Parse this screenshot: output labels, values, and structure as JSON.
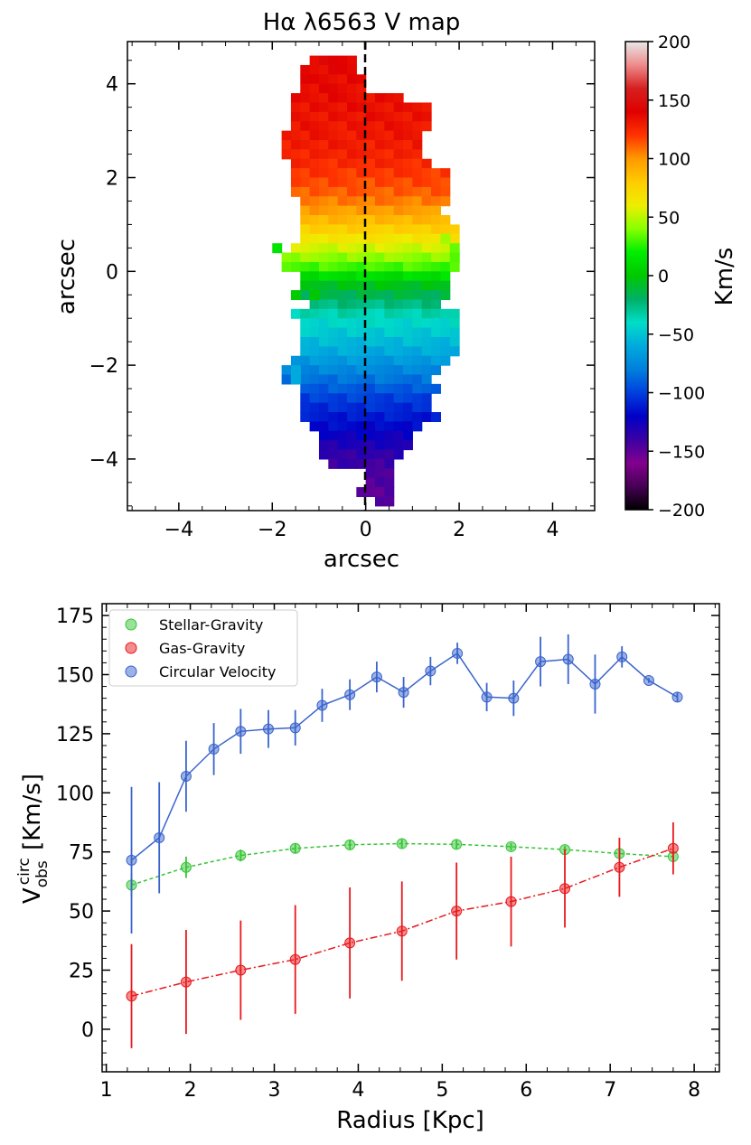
{
  "chart_data": [
    {
      "type": "heatmap",
      "title": "Hα λ6563 V map",
      "xlabel": "arcsec",
      "ylabel": "arcsec",
      "xlim": [
        -5.1,
        4.9
      ],
      "ylim": [
        -5.1,
        4.9
      ],
      "xticks": [
        "−4",
        "−2",
        "0",
        "2",
        "4"
      ],
      "yticks": [
        "−4",
        "−2",
        "0",
        "2",
        "4"
      ],
      "pixel_size_arcsec": 0.2,
      "colormap": "nipy_spectral",
      "colorbar": {
        "label": "Km/s",
        "range": [
          -200,
          200
        ],
        "ticks": [
          "200",
          "150",
          "100",
          "50",
          "0",
          "−50",
          "−100",
          "−150",
          "−200"
        ]
      },
      "center_line_x": 0,
      "rows": [
        {
          "y": 4.5,
          "x_from": -1.1,
          "x_to": -0.4,
          "v_top": 140,
          "v_bottom": 140
        },
        {
          "y": 4.3,
          "x_from": -1.3,
          "x_to": -0.4,
          "v_top": 138,
          "v_bottom": 138
        },
        {
          "y": 4.1,
          "x_from": -1.3,
          "x_to": -0.2,
          "v_top": 137,
          "v_bottom": 137
        },
        {
          "y": 3.9,
          "x_from": -1.3,
          "x_to": -0.2,
          "v_top": 136,
          "v_bottom": 136
        },
        {
          "y": 3.7,
          "x_from": -1.5,
          "x_to": 0.6,
          "v_top": 135,
          "v_bottom": 135
        },
        {
          "y": 3.5,
          "x_from": -1.5,
          "x_to": 1.2,
          "v_top": 134,
          "v_bottom": 134
        },
        {
          "y": 3.3,
          "x_from": -1.5,
          "x_to": 1.2,
          "v_top": 133,
          "v_bottom": 133
        },
        {
          "y": 3.1,
          "x_from": -1.5,
          "x_to": 1.2,
          "v_top": 132,
          "v_bottom": 132
        },
        {
          "y": 2.9,
          "x_from": -1.7,
          "x_to": 1.2,
          "v_top": 131,
          "v_bottom": 131
        },
        {
          "y": 2.7,
          "x_from": -1.7,
          "x_to": 1.2,
          "v_top": 129,
          "v_bottom": 129
        },
        {
          "y": 2.5,
          "x_from": -1.7,
          "x_to": 1.2,
          "v_top": 127,
          "v_bottom": 127
        },
        {
          "y": 2.3,
          "x_from": -1.5,
          "x_to": 1.4,
          "v_top": 124,
          "v_bottom": 124
        },
        {
          "y": 2.1,
          "x_from": -1.5,
          "x_to": 1.6,
          "v_top": 120,
          "v_bottom": 120
        },
        {
          "y": 1.9,
          "x_from": -1.5,
          "x_to": 1.6,
          "v_top": 116,
          "v_bottom": 116
        },
        {
          "y": 1.7,
          "x_from": -1.5,
          "x_to": 1.6,
          "v_top": 112,
          "v_bottom": 112
        },
        {
          "y": 1.5,
          "x_from": -1.3,
          "x_to": 1.6,
          "v_top": 106,
          "v_bottom": 106
        },
        {
          "y": 1.3,
          "x_from": -1.3,
          "x_to": 1.4,
          "v_top": 98,
          "v_bottom": 98
        },
        {
          "y": 1.1,
          "x_from": -1.3,
          "x_to": 1.6,
          "v_top": 88,
          "v_bottom": 88
        },
        {
          "y": 0.9,
          "x_from": -1.3,
          "x_to": 1.8,
          "v_top": 78,
          "v_bottom": 78
        },
        {
          "y": 0.7,
          "x_from": -1.3,
          "x_to": 1.8,
          "v_top": 66,
          "v_bottom": 66
        },
        {
          "y": 0.5,
          "x_from": -1.5,
          "x_to": 1.6,
          "v_top": 54,
          "v_bottom": 54
        },
        {
          "y": 0.3,
          "x_from": -1.7,
          "x_to": 1.8,
          "v_top": 42,
          "v_bottom": 42
        },
        {
          "y": 0.1,
          "x_from": -1.7,
          "x_to": 1.8,
          "v_top": 30,
          "v_bottom": 30
        },
        {
          "y": -0.1,
          "x_from": -1.3,
          "x_to": 1.6,
          "v_top": 12,
          "v_bottom": 12
        },
        {
          "y": -0.3,
          "x_from": -1.3,
          "x_to": 1.6,
          "v_top": -5,
          "v_bottom": -5
        },
        {
          "y": -0.5,
          "x_from": -1.3,
          "x_to": 1.6,
          "v_top": -15,
          "v_bottom": -15
        },
        {
          "y": -0.7,
          "x_from": -1.1,
          "x_to": 1.4,
          "v_top": -25,
          "v_bottom": -25
        },
        {
          "y": -0.9,
          "x_from": -1.5,
          "x_to": 1.8,
          "v_top": -35,
          "v_bottom": -35
        },
        {
          "y": -1.1,
          "x_from": -1.3,
          "x_to": 1.8,
          "v_top": -42,
          "v_bottom": -42
        },
        {
          "y": -1.3,
          "x_from": -1.3,
          "x_to": 1.8,
          "v_top": -48,
          "v_bottom": -48
        },
        {
          "y": -1.5,
          "x_from": -1.3,
          "x_to": 1.8,
          "v_top": -54,
          "v_bottom": -54
        },
        {
          "y": -1.7,
          "x_from": -1.3,
          "x_to": 1.8,
          "v_top": -60,
          "v_bottom": -60
        },
        {
          "y": -1.9,
          "x_from": -1.5,
          "x_to": 1.6,
          "v_top": -68,
          "v_bottom": -68
        },
        {
          "y": -2.1,
          "x_from": -1.7,
          "x_to": 1.6,
          "v_top": -76,
          "v_bottom": -76
        },
        {
          "y": -2.3,
          "x_from": -1.7,
          "x_to": 1.4,
          "v_top": -84,
          "v_bottom": -84
        },
        {
          "y": -2.5,
          "x_from": -1.3,
          "x_to": 1.4,
          "v_top": -92,
          "v_bottom": -92
        },
        {
          "y": -2.7,
          "x_from": -1.3,
          "x_to": 1.2,
          "v_top": -100,
          "v_bottom": -100
        },
        {
          "y": -2.9,
          "x_from": -1.3,
          "x_to": 1.2,
          "v_top": -106,
          "v_bottom": -106
        },
        {
          "y": -3.1,
          "x_from": -1.3,
          "x_to": 1.4,
          "v_top": -112,
          "v_bottom": -112
        },
        {
          "y": -3.3,
          "x_from": -1.1,
          "x_to": 1.2,
          "v_top": -118,
          "v_bottom": -118
        },
        {
          "y": -3.5,
          "x_from": -0.9,
          "x_to": 1.0,
          "v_top": -124,
          "v_bottom": -124
        },
        {
          "y": -3.7,
          "x_from": -0.9,
          "x_to": 0.8,
          "v_top": -130,
          "v_bottom": -130
        },
        {
          "y": -3.9,
          "x_from": -0.9,
          "x_to": 0.6,
          "v_top": -136,
          "v_bottom": -136
        },
        {
          "y": -4.1,
          "x_from": -0.7,
          "x_to": 0.4,
          "v_top": -140,
          "v_bottom": -140
        },
        {
          "y": -4.3,
          "x_from": 0.1,
          "x_to": 0.4,
          "v_top": -144,
          "v_bottom": -144
        },
        {
          "y": -4.5,
          "x_from": 0.1,
          "x_to": 0.4,
          "v_top": -146,
          "v_bottom": -146
        },
        {
          "y": -4.7,
          "x_from": -0.1,
          "x_to": 0.4,
          "v_top": -148,
          "v_bottom": -148
        },
        {
          "y": -4.9,
          "x_from": 0.3,
          "x_to": 0.4,
          "v_top": -150,
          "v_bottom": -150
        }
      ],
      "extra_pixels": [
        {
          "x": -1.9,
          "y": 0.5,
          "v": 15
        },
        {
          "x": 1.9,
          "y": 0.5,
          "v": 35
        },
        {
          "x": 1.9,
          "y": 0.3,
          "v": 32
        },
        {
          "x": 1.7,
          "y": 0.7,
          "v": 45
        },
        {
          "x": -1.5,
          "y": -0.5,
          "v": 2
        },
        {
          "x": -1.1,
          "y": -0.5,
          "v": 0
        },
        {
          "x": -1.5,
          "y": -2.1,
          "v": -60
        },
        {
          "x": -1.5,
          "y": -2.3,
          "v": -60
        },
        {
          "x": 1.9,
          "y": -0.9,
          "v": -35
        }
      ]
    },
    {
      "type": "line",
      "xlabel": "Radius [Kpc]",
      "ylabel": "V_obs^circ [Km/s]",
      "xlim": [
        0.95,
        8.3
      ],
      "ylim": [
        -18,
        180
      ],
      "xticks": [
        1,
        2,
        3,
        4,
        5,
        6,
        7,
        8
      ],
      "yticks": [
        0,
        25,
        50,
        75,
        100,
        125,
        150,
        175
      ],
      "legend": "top-left",
      "series": [
        {
          "name": "Stellar-Gravity",
          "color": "#35c435",
          "linestyle": "dashed",
          "x": [
            1.3,
            1.95,
            2.6,
            3.25,
            3.9,
            4.52,
            5.17,
            5.82,
            6.46,
            7.11,
            7.75
          ],
          "y": [
            61,
            68.5,
            73.5,
            76.5,
            78,
            78.5,
            78.2,
            77.2,
            76,
            74.3,
            73
          ],
          "err": [
            5,
            4.5,
            2.5,
            2,
            2,
            1.8,
            1.8,
            1.5,
            1.5,
            1.5,
            1.5
          ]
        },
        {
          "name": "Gas-Gravity",
          "color": "#e8191e",
          "linestyle": "dashdot",
          "x": [
            1.3,
            1.95,
            2.6,
            3.25,
            3.9,
            4.52,
            5.17,
            5.82,
            6.46,
            7.11,
            7.75
          ],
          "y": [
            14,
            20,
            25,
            29.5,
            36.5,
            41.5,
            50,
            54,
            59.5,
            68.5,
            76.5
          ],
          "err": [
            22,
            22,
            21,
            23,
            23.5,
            21,
            20.5,
            19,
            16.5,
            12.5,
            11
          ]
        },
        {
          "name": "Circular Velocity",
          "color": "#3a64cc",
          "linestyle": "solid",
          "x": [
            1.3,
            1.63,
            1.95,
            2.28,
            2.6,
            2.93,
            3.25,
            3.57,
            3.9,
            4.22,
            4.54,
            4.86,
            5.18,
            5.53,
            5.85,
            6.17,
            6.5,
            6.82,
            7.14,
            7.46,
            7.8
          ],
          "y": [
            71.5,
            81,
            107,
            118.5,
            126,
            127,
            127.5,
            137,
            141.5,
            149,
            142.5,
            151.5,
            159,
            140.5,
            140,
            155.5,
            156.5,
            146,
            157.5,
            147.5,
            140.5
          ],
          "err": [
            31,
            23.5,
            15,
            11,
            9.5,
            8,
            7.5,
            7,
            6.5,
            6.5,
            6.5,
            6,
            4.5,
            6,
            7.5,
            10.5,
            10.5,
            12.5,
            4.5,
            1,
            2
          ]
        }
      ]
    }
  ]
}
